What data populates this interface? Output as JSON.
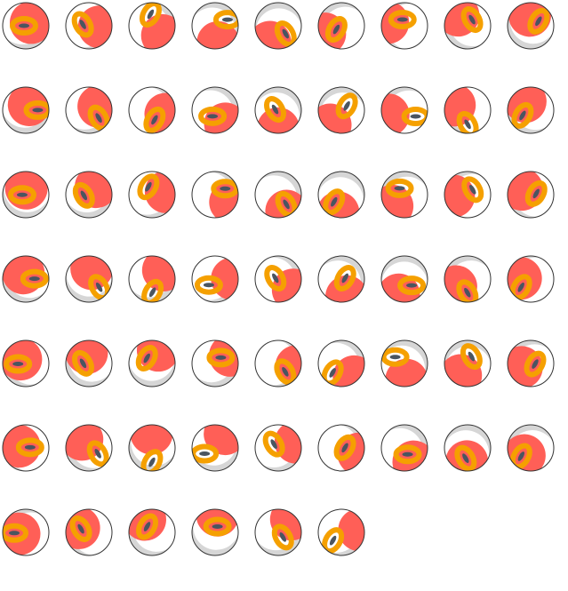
{
  "sprite_sheet": {
    "frame_count": 60,
    "columns": 9,
    "colors": {
      "ball": "#ffffff",
      "outline": "#333333",
      "red": "#ff5f57",
      "orange": "#f5a000",
      "dark": "#4a5560",
      "shade": "#d6d6d6"
    }
  }
}
